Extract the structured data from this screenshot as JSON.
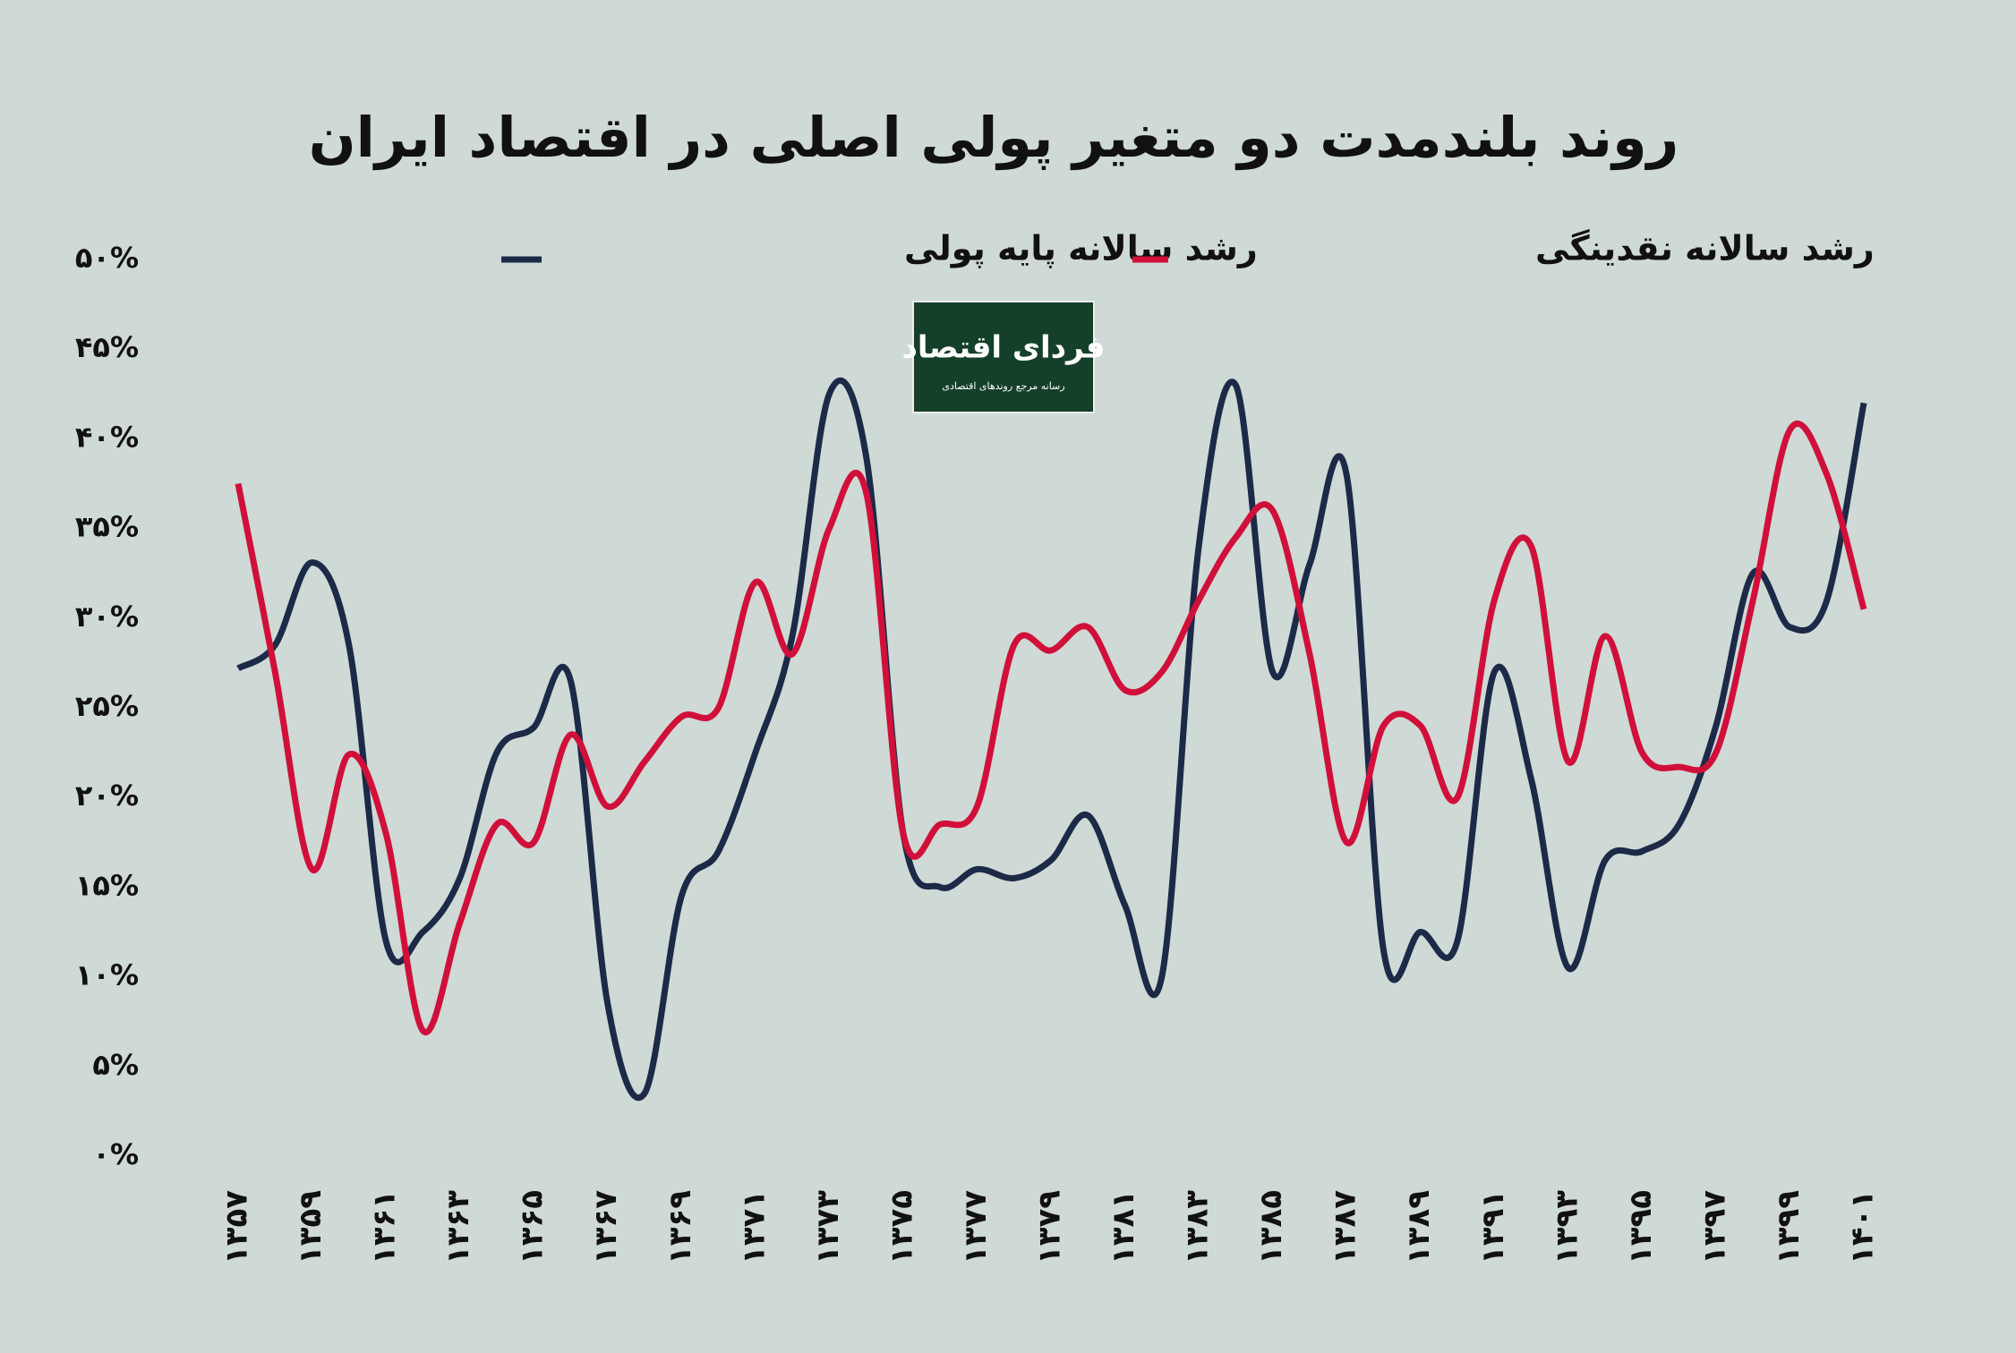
{
  "chart_data": {
    "type": "line",
    "title": "روند بلندمدت دو متغیر پولی اصلی در اقتصاد ایران",
    "logo": {
      "name": "فردای اقتصاد",
      "tagline": "رسانه مرجع روندهای اقتصادی"
    },
    "categories": [
      "۱۳۵۷",
      null,
      "۱۳۵۹",
      null,
      "۱۳۶۱",
      null,
      "۱۳۶۳",
      null,
      "۱۳۶۵",
      null,
      "۱۳۶۷",
      null,
      "۱۳۶۹",
      null,
      "۱۳۷۱",
      null,
      "۱۳۷۳",
      null,
      "۱۳۷۵",
      null,
      "۱۳۷۷",
      null,
      "۱۳۷۹",
      null,
      "۱۳۸۱",
      null,
      "۱۳۸۳",
      null,
      "۱۳۸۵",
      null,
      "۱۳۸۷",
      null,
      "۱۳۸۹",
      null,
      "۱۳۹۱",
      null,
      "۱۳۹۳",
      null,
      "۱۳۹۵",
      null,
      "۱۳۹۷",
      null,
      "۱۳۹۹",
      null,
      "۱۴۰۱"
    ],
    "series": [
      {
        "name": "رشد سالانه پایه پولی",
        "color": "#1c2a48",
        "values": [
          27.2,
          28.5,
          33.1,
          28.5,
          12,
          12.5,
          15.5,
          22.5,
          23.9,
          26.5,
          8.5,
          3.5,
          14.5,
          17,
          22.5,
          29,
          42.5,
          39,
          18,
          15,
          16,
          15.5,
          16.5,
          19,
          14,
          10,
          34,
          43,
          27,
          33,
          38,
          11.5,
          12.5,
          12,
          27,
          21,
          10.5,
          16.5,
          17,
          18.5,
          24,
          32.5,
          29.5,
          31,
          42
        ]
      },
      {
        "name": "رشد سالانه  نقدینگی",
        "color": "#d0103a",
        "values": [
          37.5,
          27,
          16,
          22.4,
          18,
          7,
          13,
          18.5,
          17.5,
          23.5,
          19.5,
          22,
          24.5,
          25,
          32,
          28,
          35,
          37,
          18,
          18.5,
          19.5,
          28.5,
          28.2,
          29.5,
          26,
          27,
          31,
          34.5,
          36,
          28,
          17.5,
          24,
          24,
          20,
          31,
          34,
          22,
          29,
          22.5,
          21.7,
          22.5,
          31,
          40.5,
          38,
          30.5
        ]
      }
    ],
    "ylim": [
      0,
      50
    ],
    "yticks": [
      {
        "value": 0,
        "label": "۰%"
      },
      {
        "value": 5,
        "label": "۵%"
      },
      {
        "value": 10,
        "label": "۱۰%"
      },
      {
        "value": 15,
        "label": "۱۵%"
      },
      {
        "value": 20,
        "label": "۲۰%"
      },
      {
        "value": 25,
        "label": "۲۵%"
      },
      {
        "value": 30,
        "label": "۳۰%"
      },
      {
        "value": 35,
        "label": "۳۵%"
      },
      {
        "value": 40,
        "label": "۴۰%"
      },
      {
        "value": 45,
        "label": "۴۵%"
      },
      {
        "value": 50,
        "label": "۵۰%"
      }
    ],
    "grid": false
  }
}
